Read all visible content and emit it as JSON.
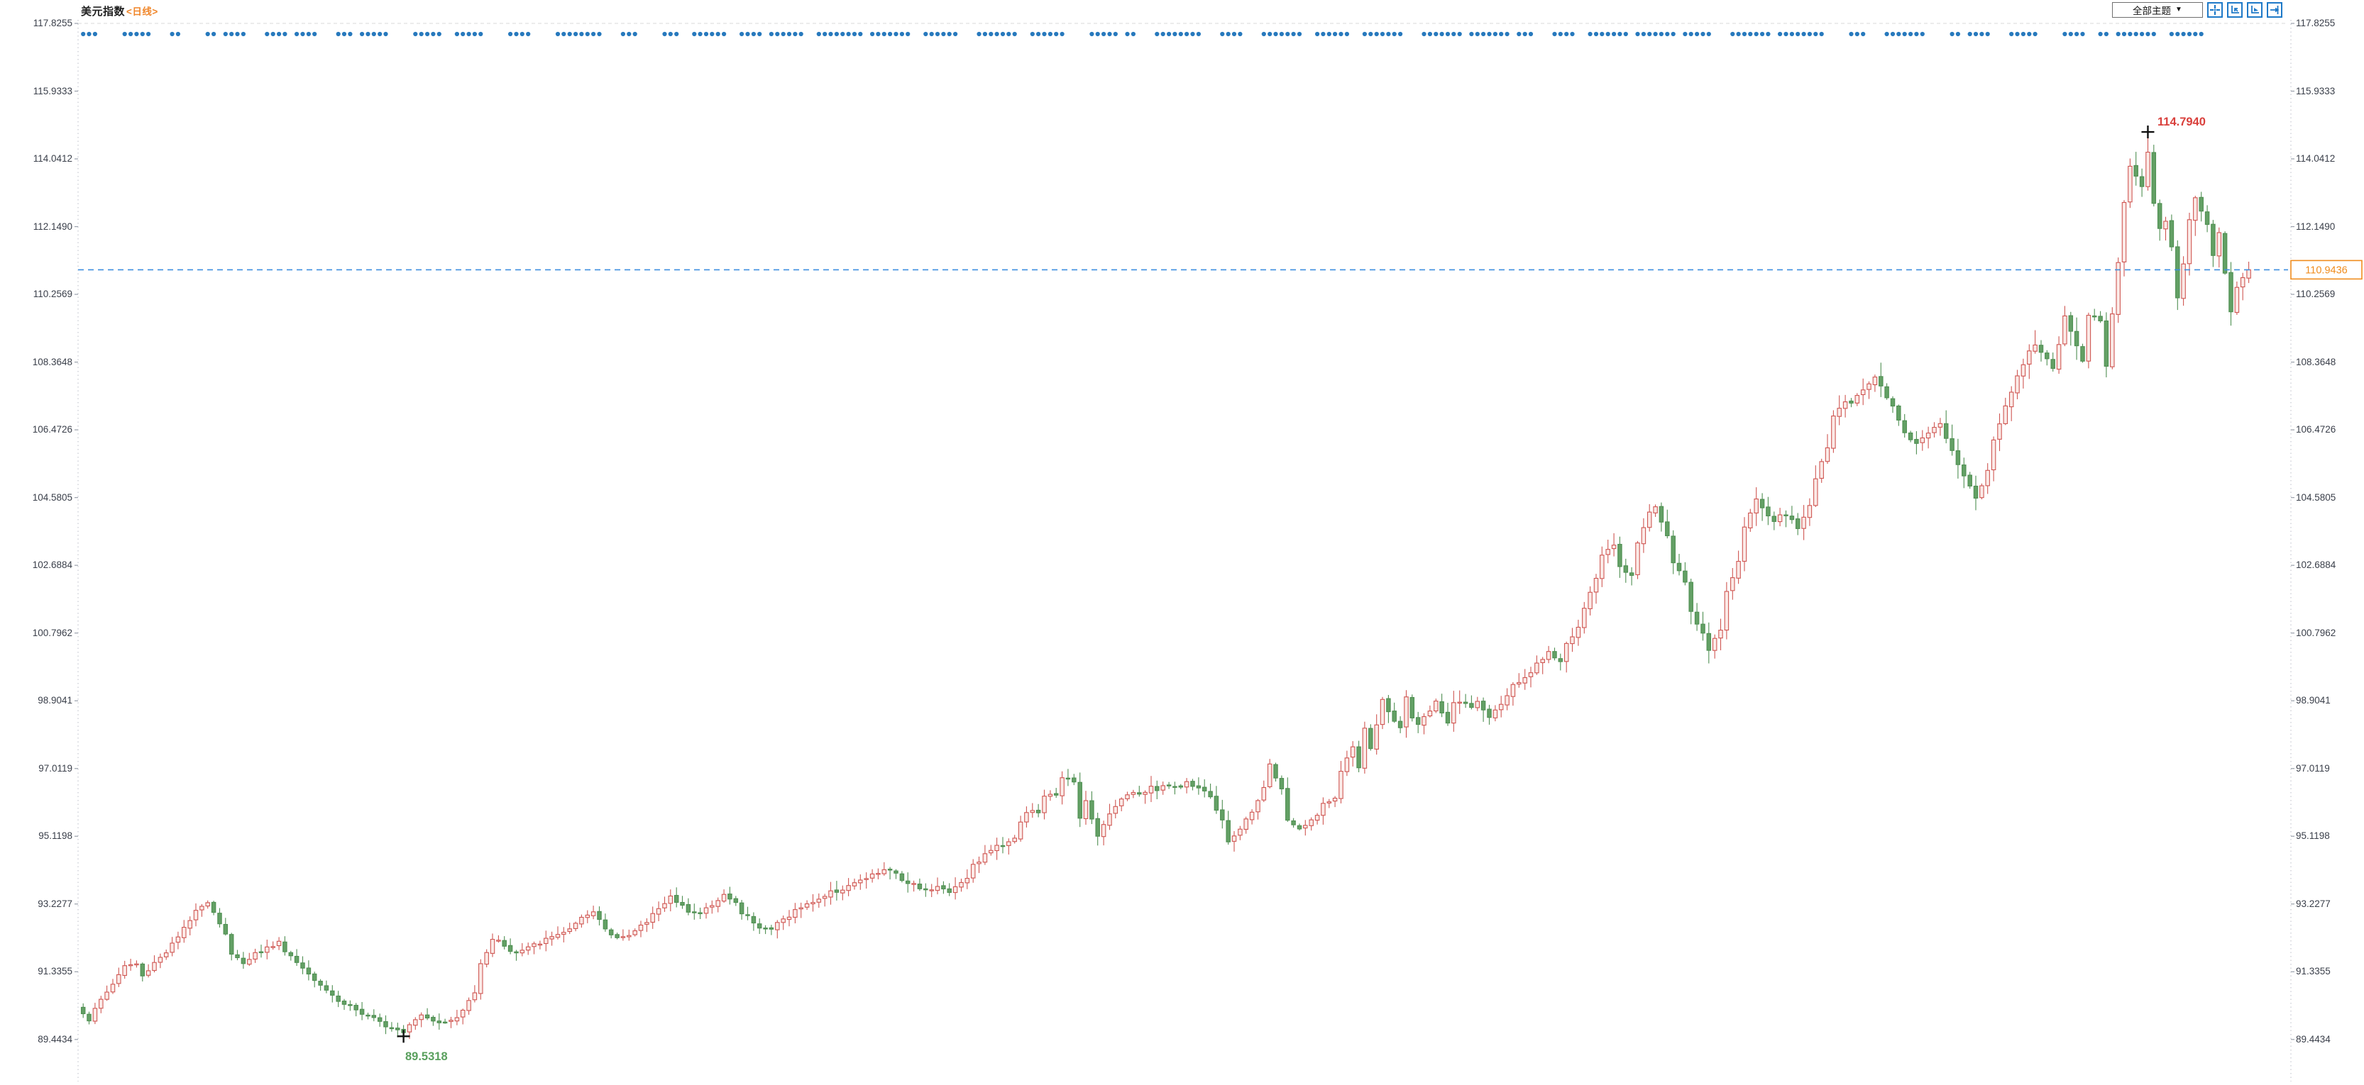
{
  "title": {
    "symbol": "美元指数",
    "period": "<日线>"
  },
  "toolbar": {
    "theme_label": "全部主题",
    "dropdown_arrow": "▼",
    "icons": [
      {
        "name": "crosshair-icon"
      },
      {
        "name": "y-axis-scale-icon"
      },
      {
        "name": "x-axis-scale-icon"
      },
      {
        "name": "jump-to-latest-icon"
      }
    ]
  },
  "axis": {
    "labels": [
      "117.8255",
      "115.9333",
      "114.0412",
      "112.1490",
      "110.2569",
      "108.3648",
      "106.4726",
      "104.5805",
      "102.6884",
      "100.7962",
      "98.9041",
      "97.0119",
      "95.1198",
      "93.2277",
      "91.3355",
      "89.4434"
    ]
  },
  "annotations": {
    "high": {
      "value": "114.7940"
    },
    "low": {
      "value": "89.5318"
    },
    "last": {
      "value": "110.9436"
    }
  },
  "colors": {
    "up": "#cf5652",
    "up_fill": "#fbeae7",
    "down": "#63a065",
    "down_border": "#4f8f52",
    "dots": "#2779bd",
    "dashed_line": "#3d8fe0",
    "last_box": "#f08c1d",
    "grid": "#d8d8d8",
    "axis_line": "#b9bdc7",
    "axis_text": "#3a3f4a",
    "high_text": "#d9403c",
    "low_text": "#5aa05e",
    "marker": "#111111",
    "icon_blue": "#1e79c8"
  },
  "chart_data": {
    "type": "candlestick",
    "title": "美元指数 (US Dollar Index)",
    "period": "日线 (daily)",
    "legend_position": "none",
    "grid": "top dashed line only; dotted y-axis lines left and right",
    "visible_points": 366,
    "y_axis_ticks": [
      117.8255,
      115.9333,
      114.0412,
      112.149,
      110.2569,
      108.3648,
      106.4726,
      104.5805,
      102.6884,
      100.7962,
      98.9041,
      97.0119,
      95.1198,
      93.2277,
      91.3355,
      89.4434
    ],
    "ylim": [
      89.17,
      118.2
    ],
    "marked_high": 114.794,
    "marked_high_index": 348,
    "marked_low": 89.5318,
    "marked_low_index": 54,
    "last_price": 110.9436,
    "event_dot_row": {
      "y_price_level": 117.55,
      "style": "clustered blue dots, one per bar with random gaps, ends near bar 357"
    },
    "note": "closes are piecewise-linear interpolation of the anchors below; OHLC wicks synthesized deterministically (seeded) to match visual texture",
    "close_path_anchors": [
      [
        0,
        90.2
      ],
      [
        1,
        90.0
      ],
      [
        3,
        90.55
      ],
      [
        5,
        91.0
      ],
      [
        7,
        91.5
      ],
      [
        9,
        91.55
      ],
      [
        10,
        91.2
      ],
      [
        12,
        91.6
      ],
      [
        14,
        91.9
      ],
      [
        16,
        92.3
      ],
      [
        18,
        92.75
      ],
      [
        19,
        93.1
      ],
      [
        21,
        93.3
      ],
      [
        22,
        93.0
      ],
      [
        24,
        92.4
      ],
      [
        25,
        91.8
      ],
      [
        27,
        91.6
      ],
      [
        29,
        91.85
      ],
      [
        31,
        92.0
      ],
      [
        33,
        92.15
      ],
      [
        34,
        91.95
      ],
      [
        36,
        91.6
      ],
      [
        38,
        91.3
      ],
      [
        40,
        91.0
      ],
      [
        42,
        90.7
      ],
      [
        43,
        90.5
      ],
      [
        45,
        90.4
      ],
      [
        47,
        90.15
      ],
      [
        49,
        90.0
      ],
      [
        51,
        89.85
      ],
      [
        52,
        89.8
      ],
      [
        54,
        89.68
      ],
      [
        55,
        89.9
      ],
      [
        57,
        90.15
      ],
      [
        59,
        90.0
      ],
      [
        61,
        89.9
      ],
      [
        63,
        90.05
      ],
      [
        64,
        90.25
      ],
      [
        66,
        90.8
      ],
      [
        67,
        91.6
      ],
      [
        69,
        92.2
      ],
      [
        70,
        92.25
      ],
      [
        72,
        91.9
      ],
      [
        73,
        91.85
      ],
      [
        75,
        92.0
      ],
      [
        77,
        92.15
      ],
      [
        79,
        92.3
      ],
      [
        80,
        92.4
      ],
      [
        82,
        92.5
      ],
      [
        84,
        92.8
      ],
      [
        86,
        93.0
      ],
      [
        87,
        92.8
      ],
      [
        88,
        92.55
      ],
      [
        90,
        92.3
      ],
      [
        92,
        92.3
      ],
      [
        93,
        92.5
      ],
      [
        95,
        92.75
      ],
      [
        96,
        93.0
      ],
      [
        98,
        93.2
      ],
      [
        99,
        93.4
      ],
      [
        101,
        93.25
      ],
      [
        102,
        93.0
      ],
      [
        104,
        92.95
      ],
      [
        105,
        93.1
      ],
      [
        107,
        93.3
      ],
      [
        108,
        93.5
      ],
      [
        110,
        93.25
      ],
      [
        111,
        93.0
      ],
      [
        113,
        92.75
      ],
      [
        114,
        92.6
      ],
      [
        116,
        92.5
      ],
      [
        117,
        92.7
      ],
      [
        119,
        92.9
      ],
      [
        120,
        93.05
      ],
      [
        122,
        93.2
      ],
      [
        123,
        93.3
      ],
      [
        125,
        93.45
      ],
      [
        126,
        93.55
      ],
      [
        128,
        93.65
      ],
      [
        129,
        93.75
      ],
      [
        131,
        93.85
      ],
      [
        132,
        93.95
      ],
      [
        134,
        94.1
      ],
      [
        135,
        94.2
      ],
      [
        137,
        94.05
      ],
      [
        138,
        93.9
      ],
      [
        140,
        93.8
      ],
      [
        141,
        93.7
      ],
      [
        143,
        93.6
      ],
      [
        144,
        93.7
      ],
      [
        146,
        93.6
      ],
      [
        147,
        93.7
      ],
      [
        149,
        94.0
      ],
      [
        150,
        94.3
      ],
      [
        152,
        94.6
      ],
      [
        153,
        94.75
      ],
      [
        155,
        94.9
      ],
      [
        157,
        95.1
      ],
      [
        158,
        95.5
      ],
      [
        159,
        95.8
      ],
      [
        161,
        95.8
      ],
      [
        162,
        96.2
      ],
      [
        164,
        96.3
      ],
      [
        165,
        96.8
      ],
      [
        167,
        96.6
      ],
      [
        168,
        95.6
      ],
      [
        169,
        96.1
      ],
      [
        171,
        95.1
      ],
      [
        172,
        95.5
      ],
      [
        174,
        95.9
      ],
      [
        175,
        96.2
      ],
      [
        177,
        96.4
      ],
      [
        178,
        96.3
      ],
      [
        180,
        96.5
      ],
      [
        181,
        96.4
      ],
      [
        183,
        96.55
      ],
      [
        184,
        96.5
      ],
      [
        186,
        96.6
      ],
      [
        187,
        96.55
      ],
      [
        189,
        96.4
      ],
      [
        190,
        96.2
      ],
      [
        192,
        95.6
      ],
      [
        193,
        95.0
      ],
      [
        195,
        95.3
      ],
      [
        196,
        95.55
      ],
      [
        197,
        95.8
      ],
      [
        199,
        96.5
      ],
      [
        200,
        97.1
      ],
      [
        202,
        96.4
      ],
      [
        203,
        95.6
      ],
      [
        205,
        95.3
      ],
      [
        206,
        95.45
      ],
      [
        208,
        95.7
      ],
      [
        209,
        96.0
      ],
      [
        211,
        96.2
      ],
      [
        212,
        96.9
      ],
      [
        214,
        97.6
      ],
      [
        215,
        97.0
      ],
      [
        216,
        98.1
      ],
      [
        217,
        97.6
      ],
      [
        219,
        98.9
      ],
      [
        220,
        98.6
      ],
      [
        222,
        98.1
      ],
      [
        223,
        99.0
      ],
      [
        224,
        98.4
      ],
      [
        225,
        98.3
      ],
      [
        227,
        98.6
      ],
      [
        228,
        98.85
      ],
      [
        230,
        98.3
      ],
      [
        231,
        98.8
      ],
      [
        232,
        98.9
      ],
      [
        234,
        98.7
      ],
      [
        235,
        98.9
      ],
      [
        237,
        98.4
      ],
      [
        238,
        98.7
      ],
      [
        240,
        99.0
      ],
      [
        241,
        99.3
      ],
      [
        243,
        99.5
      ],
      [
        244,
        99.7
      ],
      [
        246,
        100.1
      ],
      [
        247,
        100.3
      ],
      [
        249,
        100.0
      ],
      [
        250,
        100.5
      ],
      [
        252,
        100.9
      ],
      [
        253,
        101.5
      ],
      [
        255,
        102.3
      ],
      [
        256,
        103.0
      ],
      [
        258,
        103.3
      ],
      [
        259,
        102.7
      ],
      [
        261,
        102.4
      ],
      [
        262,
        103.3
      ],
      [
        264,
        104.2
      ],
      [
        265,
        104.35
      ],
      [
        267,
        103.5
      ],
      [
        268,
        102.8
      ],
      [
        270,
        102.2
      ],
      [
        271,
        101.4
      ],
      [
        273,
        100.8
      ],
      [
        274,
        100.3
      ],
      [
        276,
        100.9
      ],
      [
        277,
        101.9
      ],
      [
        279,
        102.8
      ],
      [
        280,
        103.8
      ],
      [
        282,
        104.5
      ],
      [
        283,
        104.3
      ],
      [
        285,
        103.9
      ],
      [
        286,
        104.1
      ],
      [
        288,
        104.0
      ],
      [
        289,
        103.7
      ],
      [
        291,
        104.4
      ],
      [
        292,
        105.1
      ],
      [
        294,
        106.0
      ],
      [
        295,
        106.8
      ],
      [
        297,
        107.3
      ],
      [
        298,
        107.2
      ],
      [
        300,
        107.6
      ],
      [
        302,
        108.0
      ],
      [
        304,
        107.4
      ],
      [
        306,
        106.8
      ],
      [
        307,
        106.4
      ],
      [
        309,
        106.1
      ],
      [
        311,
        106.4
      ],
      [
        313,
        106.6
      ],
      [
        314,
        106.2
      ],
      [
        316,
        105.5
      ],
      [
        318,
        104.9
      ],
      [
        319,
        104.6
      ],
      [
        321,
        105.3
      ],
      [
        322,
        106.2
      ],
      [
        324,
        107.1
      ],
      [
        326,
        108.0
      ],
      [
        328,
        108.7
      ],
      [
        329,
        108.9
      ],
      [
        331,
        108.4
      ],
      [
        332,
        108.2
      ],
      [
        334,
        109.6
      ],
      [
        335,
        109.2
      ],
      [
        337,
        108.4
      ],
      [
        338,
        109.7
      ],
      [
        340,
        109.5
      ],
      [
        341,
        108.3
      ],
      [
        343,
        111.2
      ],
      [
        344,
        112.8
      ],
      [
        345,
        113.8
      ],
      [
        347,
        113.3
      ],
      [
        348,
        114.2
      ],
      [
        349,
        112.8
      ],
      [
        350,
        112.1
      ],
      [
        351,
        112.3
      ],
      [
        352,
        111.6
      ],
      [
        353,
        110.2
      ],
      [
        354,
        111.1
      ],
      [
        355,
        112.3
      ],
      [
        356,
        113.0
      ],
      [
        357,
        112.6
      ],
      [
        358,
        112.2
      ],
      [
        359,
        111.4
      ],
      [
        360,
        112.0
      ],
      [
        362,
        109.8
      ],
      [
        363,
        110.4
      ],
      [
        365,
        110.9436
      ]
    ]
  }
}
